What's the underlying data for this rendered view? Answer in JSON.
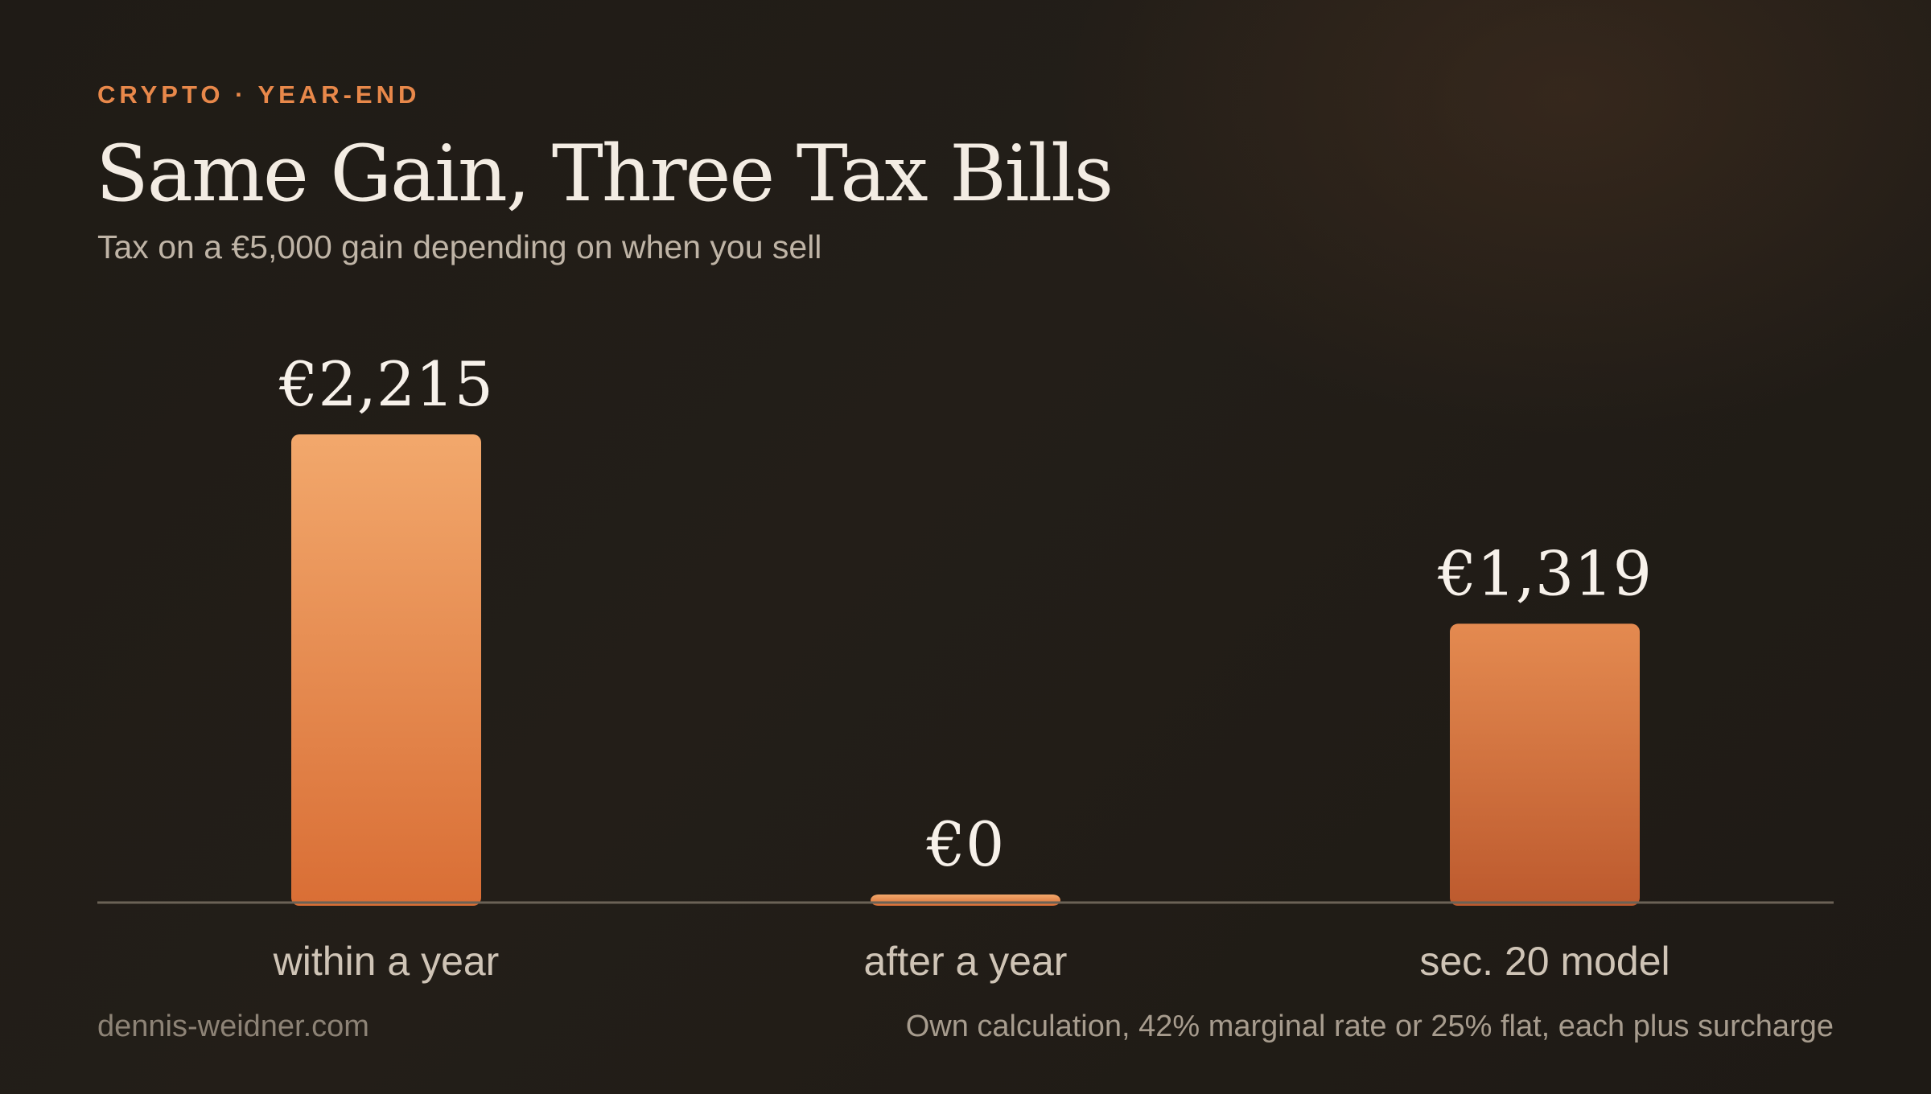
{
  "kicker": "CRYPTO · YEAR-END",
  "title": "Same Gain, Three Tax Bills",
  "subtitle": "Tax on a €5,000 gain depending on when you sell",
  "footer": {
    "site": "dennis-weidner.com",
    "source": "Own calculation, 42% marginal rate or 25% flat, each plus surcharge"
  },
  "colors": {
    "accent": "#e8884a",
    "bar_top": "#f2a86c",
    "bar_bottom": "#d96e35",
    "bar3_top": "#e48a50",
    "bar3_bottom": "#bd5a2e",
    "axis": "#6b6256",
    "value_text": "#f7f1ea",
    "category_text": "#cfc4b6"
  },
  "chart_data": {
    "type": "bar",
    "categories": [
      "within a year",
      "after a year",
      "sec. 20 model"
    ],
    "values": [
      2215,
      0,
      1319
    ],
    "value_labels": [
      "€2,215",
      "€0",
      "€1,319"
    ],
    "ylim": [
      0,
      2215
    ],
    "grid": false,
    "xlabel": "",
    "ylabel": ""
  }
}
